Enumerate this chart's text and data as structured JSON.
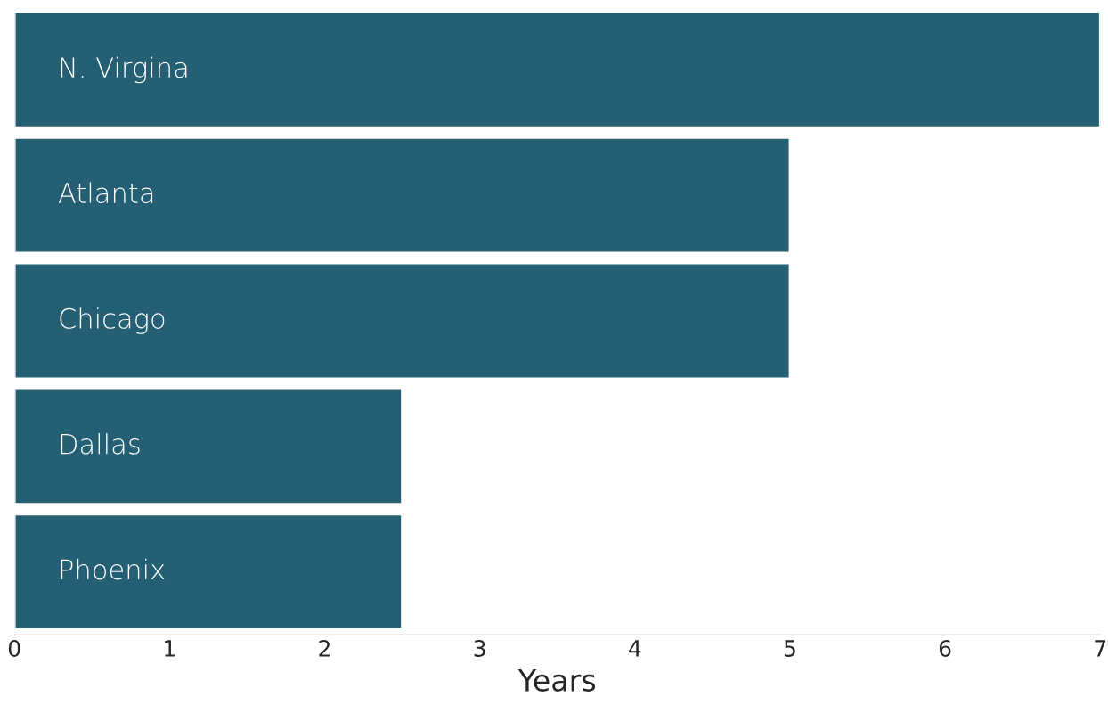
{
  "chart_data": {
    "type": "bar",
    "orientation": "horizontal",
    "xlabel": "Years",
    "categories": [
      "N. Virgina",
      "Atlanta",
      "Chicago",
      "Dallas",
      "Phoenix"
    ],
    "values": [
      7,
      5,
      5,
      2.5,
      2.5
    ],
    "color": "#245f73",
    "xlim": [
      0,
      7
    ],
    "xticks": [
      0,
      1,
      2,
      3,
      4,
      5,
      6,
      7
    ],
    "grid": false,
    "legend": false
  }
}
